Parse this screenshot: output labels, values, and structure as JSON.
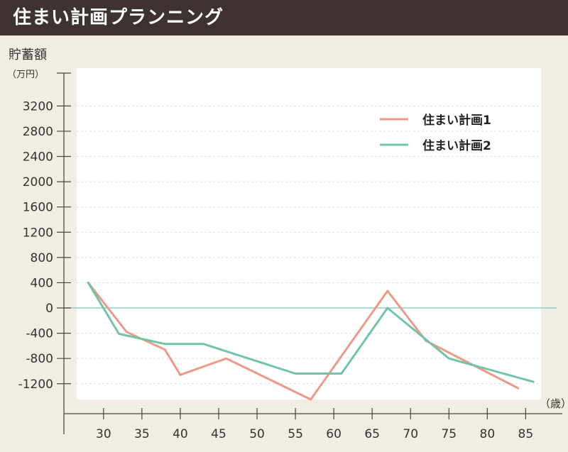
{
  "header": {
    "title": "住まい計画プランニング"
  },
  "chart_data": {
    "type": "line",
    "ylabel": "貯蓄額",
    "yunit": "（万円）",
    "xunit": "（歳）",
    "ylim": [
      -1450,
      3800
    ],
    "xlim": [
      26.5,
      87
    ],
    "yticks": [
      3200,
      2800,
      2400,
      2000,
      1600,
      1200,
      800,
      400,
      0,
      -400,
      -800,
      -1200
    ],
    "xticks": [
      30,
      35,
      40,
      45,
      50,
      55,
      60,
      65,
      70,
      75,
      80,
      85
    ],
    "grid": true,
    "legend": "top-right",
    "series": [
      {
        "name": "住まい計画1",
        "color": "#ec9a85",
        "x": [
          28,
          33,
          38,
          40,
          46,
          57,
          67,
          72,
          84
        ],
        "y": [
          400,
          -380,
          -660,
          -1060,
          -800,
          -1450,
          270,
          -520,
          -1270
        ]
      },
      {
        "name": "住まい計画2",
        "color": "#72c3a7",
        "x": [
          28,
          32,
          38,
          43,
          55,
          61,
          67,
          75,
          86
        ],
        "y": [
          400,
          -410,
          -570,
          -570,
          -1040,
          -1040,
          0,
          -800,
          -1170
        ]
      }
    ],
    "zero_line_color": "#8ad0c2"
  }
}
